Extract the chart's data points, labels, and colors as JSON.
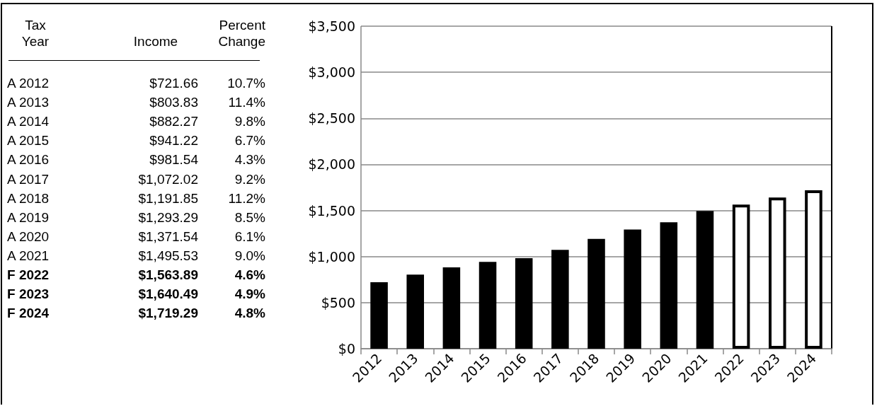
{
  "chart_data": {
    "type": "bar",
    "categories": [
      "2012",
      "2013",
      "2014",
      "2015",
      "2016",
      "2017",
      "2018",
      "2019",
      "2020",
      "2021",
      "2022",
      "2023",
      "2024"
    ],
    "values": [
      721.66,
      803.83,
      882.27,
      941.22,
      981.54,
      1072.02,
      1191.85,
      1293.29,
      1371.54,
      1495.53,
      1563.89,
      1640.49,
      1719.29
    ],
    "colors": [
      "#000000",
      "#000000",
      "#000000",
      "#000000",
      "#000000",
      "#000000",
      "#000000",
      "#000000",
      "#000000",
      "#000000",
      "#ffffff",
      "#ffffff",
      "#ffffff"
    ],
    "annotations": [
      "Tax\nYear",
      "Income",
      "Percent\nChange",
      "A 2012",
      "$721.66",
      "10.7%",
      "A 2013",
      "$803.83",
      "11.4%",
      "A 2014",
      "$882.27",
      "9.8%",
      "A 2015",
      "$941.22",
      "6.7%",
      "A 2016",
      "$981.54",
      "4.3%",
      "A 2017",
      "$1,072.02",
      "9.2%",
      "A 2018",
      "$1,191.85",
      "11.2%",
      "A 2019",
      "$1,293.29",
      "8.5%",
      "A 2020",
      "$1,371.54",
      "6.1%",
      "A 2021",
      "$1,495.53",
      "9.0%",
      "F 2022",
      "$1,563.89",
      "4.6%",
      "F 2023",
      "$1,640.49",
      "4.9%",
      "F 2024",
      "$1,719.29",
      "4.8%"
    ],
    "ylim": [
      0,
      3500
    ],
    "yticks": [
      {
        "value": 0,
        "label": "$0"
      },
      {
        "value": 500,
        "label": "$500"
      },
      {
        "value": 1000,
        "label": "$1,000"
      },
      {
        "value": 1500,
        "label": "$1,500"
      },
      {
        "value": 2000,
        "label": "$2,000"
      },
      {
        "value": 2500,
        "label": "$2,500"
      },
      {
        "value": 3000,
        "label": "$3,000"
      },
      {
        "value": 3500,
        "label": "$3,500"
      }
    ],
    "grid": "y"
  }
}
